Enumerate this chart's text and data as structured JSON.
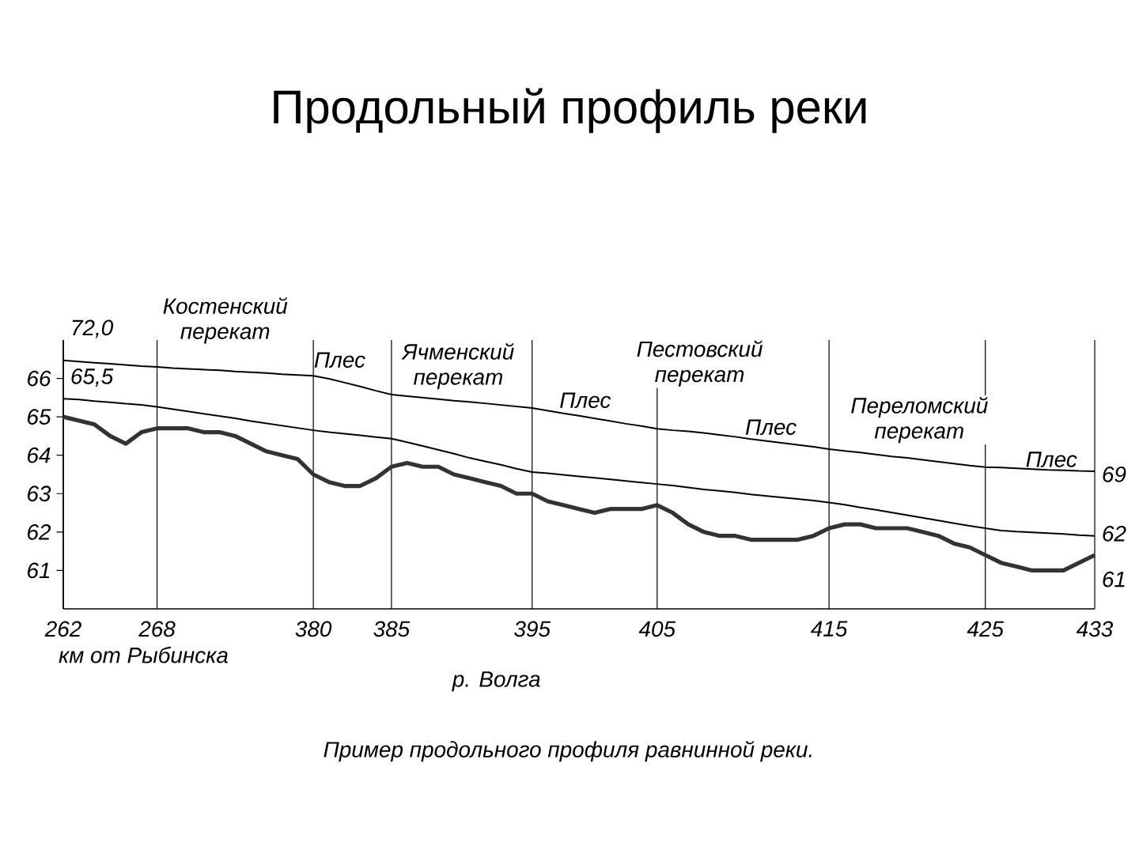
{
  "chart_data": {
    "type": "line",
    "title": "Продольный профиль реки",
    "xlabel": "км от Рыбинска",
    "categories": [
      "262",
      null,
      null,
      null,
      null,
      null,
      "268",
      null,
      null,
      null,
      null,
      null,
      null,
      null,
      null,
      null,
      "380",
      null,
      null,
      null,
      null,
      "385",
      null,
      null,
      null,
      null,
      null,
      null,
      null,
      null,
      "395",
      null,
      null,
      null,
      null,
      null,
      null,
      null,
      "405",
      null,
      null,
      null,
      null,
      null,
      null,
      null,
      null,
      null,
      null,
      "415",
      null,
      null,
      null,
      null,
      null,
      null,
      null,
      null,
      null,
      "425",
      null,
      null,
      null,
      null,
      null,
      null,
      "433"
    ],
    "series": [
      {
        "color": "#000000",
        "values": [
          66.47,
          66.44,
          66.41,
          66.38,
          66.35,
          66.32,
          66.3,
          66.27,
          66.25,
          66.23,
          66.21,
          66.18,
          66.16,
          66.14,
          66.11,
          66.09,
          66.07,
          65.99,
          65.89,
          65.79,
          65.68,
          65.58,
          65.54,
          65.5,
          65.46,
          65.42,
          65.39,
          65.35,
          65.31,
          65.27,
          65.23,
          65.16,
          65.09,
          65.03,
          64.96,
          64.89,
          64.82,
          64.76,
          64.69,
          64.65,
          64.62,
          64.58,
          64.53,
          64.48,
          64.42,
          64.37,
          64.32,
          64.27,
          64.22,
          64.16,
          64.11,
          64.07,
          64.02,
          63.97,
          63.93,
          63.88,
          63.83,
          63.78,
          63.73,
          63.69,
          63.68,
          63.66,
          63.64,
          63.62,
          63.61,
          63.59,
          63.58
        ]
      },
      {
        "color": "#000000",
        "values": [
          65.47,
          65.45,
          65.41,
          65.38,
          65.34,
          65.31,
          65.26,
          65.2,
          65.14,
          65.08,
          65.02,
          64.96,
          64.89,
          64.83,
          64.77,
          64.71,
          64.65,
          64.6,
          64.56,
          64.52,
          64.47,
          64.43,
          64.34,
          64.24,
          64.14,
          64.04,
          63.93,
          63.84,
          63.75,
          63.65,
          63.56,
          63.53,
          63.49,
          63.45,
          63.41,
          63.37,
          63.33,
          63.29,
          63.25,
          63.21,
          63.16,
          63.11,
          63.07,
          63.03,
          62.98,
          62.94,
          62.9,
          62.86,
          62.82,
          62.77,
          62.71,
          62.64,
          62.58,
          62.51,
          62.44,
          62.37,
          62.3,
          62.23,
          62.16,
          62.1,
          62.04,
          62.01,
          61.99,
          61.97,
          61.95,
          61.92,
          61.9
        ]
      },
      {
        "color": "#333333",
        "values": [
          65.0,
          64.9,
          64.8,
          64.5,
          64.3,
          64.6,
          64.7,
          64.7,
          64.7,
          64.6,
          64.6,
          64.5,
          64.3,
          64.1,
          64.0,
          63.9,
          63.5,
          63.3,
          63.2,
          63.2,
          63.4,
          63.7,
          63.8,
          63.7,
          63.7,
          63.5,
          63.4,
          63.3,
          63.2,
          63.0,
          63.0,
          62.8,
          62.7,
          62.6,
          62.5,
          62.6,
          62.6,
          62.6,
          62.7,
          62.5,
          62.2,
          62.0,
          61.9,
          61.9,
          61.8,
          61.8,
          61.8,
          61.8,
          61.9,
          62.1,
          62.2,
          62.2,
          62.1,
          62.1,
          62.1,
          62.0,
          61.9,
          61.7,
          61.6,
          61.4,
          61.2,
          61.1,
          61.0,
          61.0,
          61.0,
          61.2,
          61.4
        ]
      }
    ],
    "ylim": [
      60,
      67
    ],
    "yticks": [
      61,
      62,
      63,
      64,
      65,
      66
    ],
    "grid": "x",
    "marker": "none",
    "line_style": "solid",
    "annotations": [
      "72,0",
      "65,5",
      "69",
      "62",
      "61",
      "Костенский перекат",
      "Плес",
      "Ячменский перекат",
      "Плес",
      "Пестовский перекат",
      "Плес",
      "Переломский перекат",
      "Плес",
      "р. Волга",
      "Пример продольного профиля равнинной реки."
    ]
  }
}
